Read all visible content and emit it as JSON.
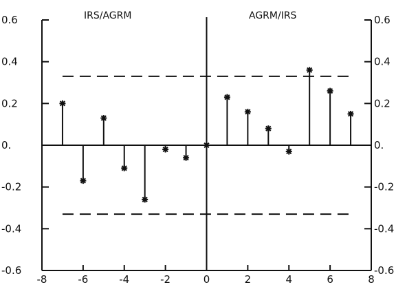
{
  "chart_data": {
    "type": "stem",
    "panel_labels": {
      "left": "IRS/AGRM",
      "right": "AGRM/IRS"
    },
    "x": [
      -7,
      -6,
      -5,
      -4,
      -3,
      -2,
      -1,
      0,
      1,
      2,
      3,
      4,
      5,
      6,
      7
    ],
    "values": [
      0.2,
      -0.17,
      0.13,
      -0.11,
      -0.26,
      -0.02,
      -0.06,
      0.0,
      0.23,
      0.16,
      0.08,
      -0.03,
      0.36,
      0.26,
      0.15
    ],
    "confidence_bounds": [
      0.33,
      -0.33
    ],
    "xlim": [
      -8,
      8
    ],
    "ylim": [
      -0.6,
      0.6
    ],
    "x_ticks": [
      "-8",
      "-6",
      "-4",
      "-2",
      "0",
      "2",
      "4",
      "6",
      "8"
    ],
    "x_tick_values": [
      -8,
      -6,
      -4,
      -2,
      0,
      2,
      4,
      6,
      8
    ],
    "y_ticks": [
      "0.6",
      "0.4",
      "0.2",
      "0.",
      "-0.2",
      "-0.4",
      "-0.6"
    ],
    "y_tick_values": [
      0.6,
      0.4,
      0.2,
      0,
      -0.2,
      -0.4,
      -0.6
    ],
    "marker": "asterisk",
    "grid": false,
    "colors": {
      "line": "#111111",
      "background": "#ffffff"
    }
  }
}
